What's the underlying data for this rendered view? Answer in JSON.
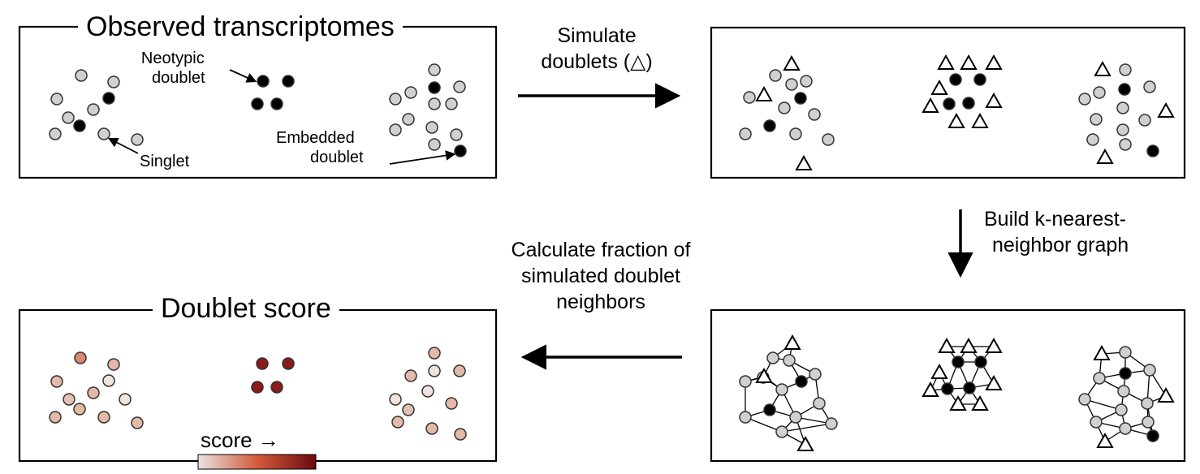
{
  "panels": {
    "observed": {
      "title": "Observed transcriptomes"
    },
    "score": {
      "title": "Doublet score"
    }
  },
  "annotations": {
    "neotypic_line1": "Neotypic",
    "neotypic_line2": "doublet",
    "singlet": "Singlet",
    "embedded_line1": "Embedded",
    "embedded_line2": "doublet"
  },
  "steps": {
    "simulate_line1": "Simulate",
    "simulate_line2": "doublets (△)",
    "knn_line1": "Build k-nearest-",
    "knn_line2": "neighbor graph",
    "fraction_line1": "Calculate fraction of",
    "fraction_line2": "simulated doublet",
    "fraction_line3": "neighbors"
  },
  "legend": {
    "label": "score →",
    "gradient_low": "#e8e3e1",
    "gradient_mid": "#d45a3c",
    "gradient_high": "#6b0a0f"
  },
  "colors": {
    "singlet": "#d0d0d0",
    "doublet": "#000000",
    "simulated_doublet": "#ffffff"
  }
}
